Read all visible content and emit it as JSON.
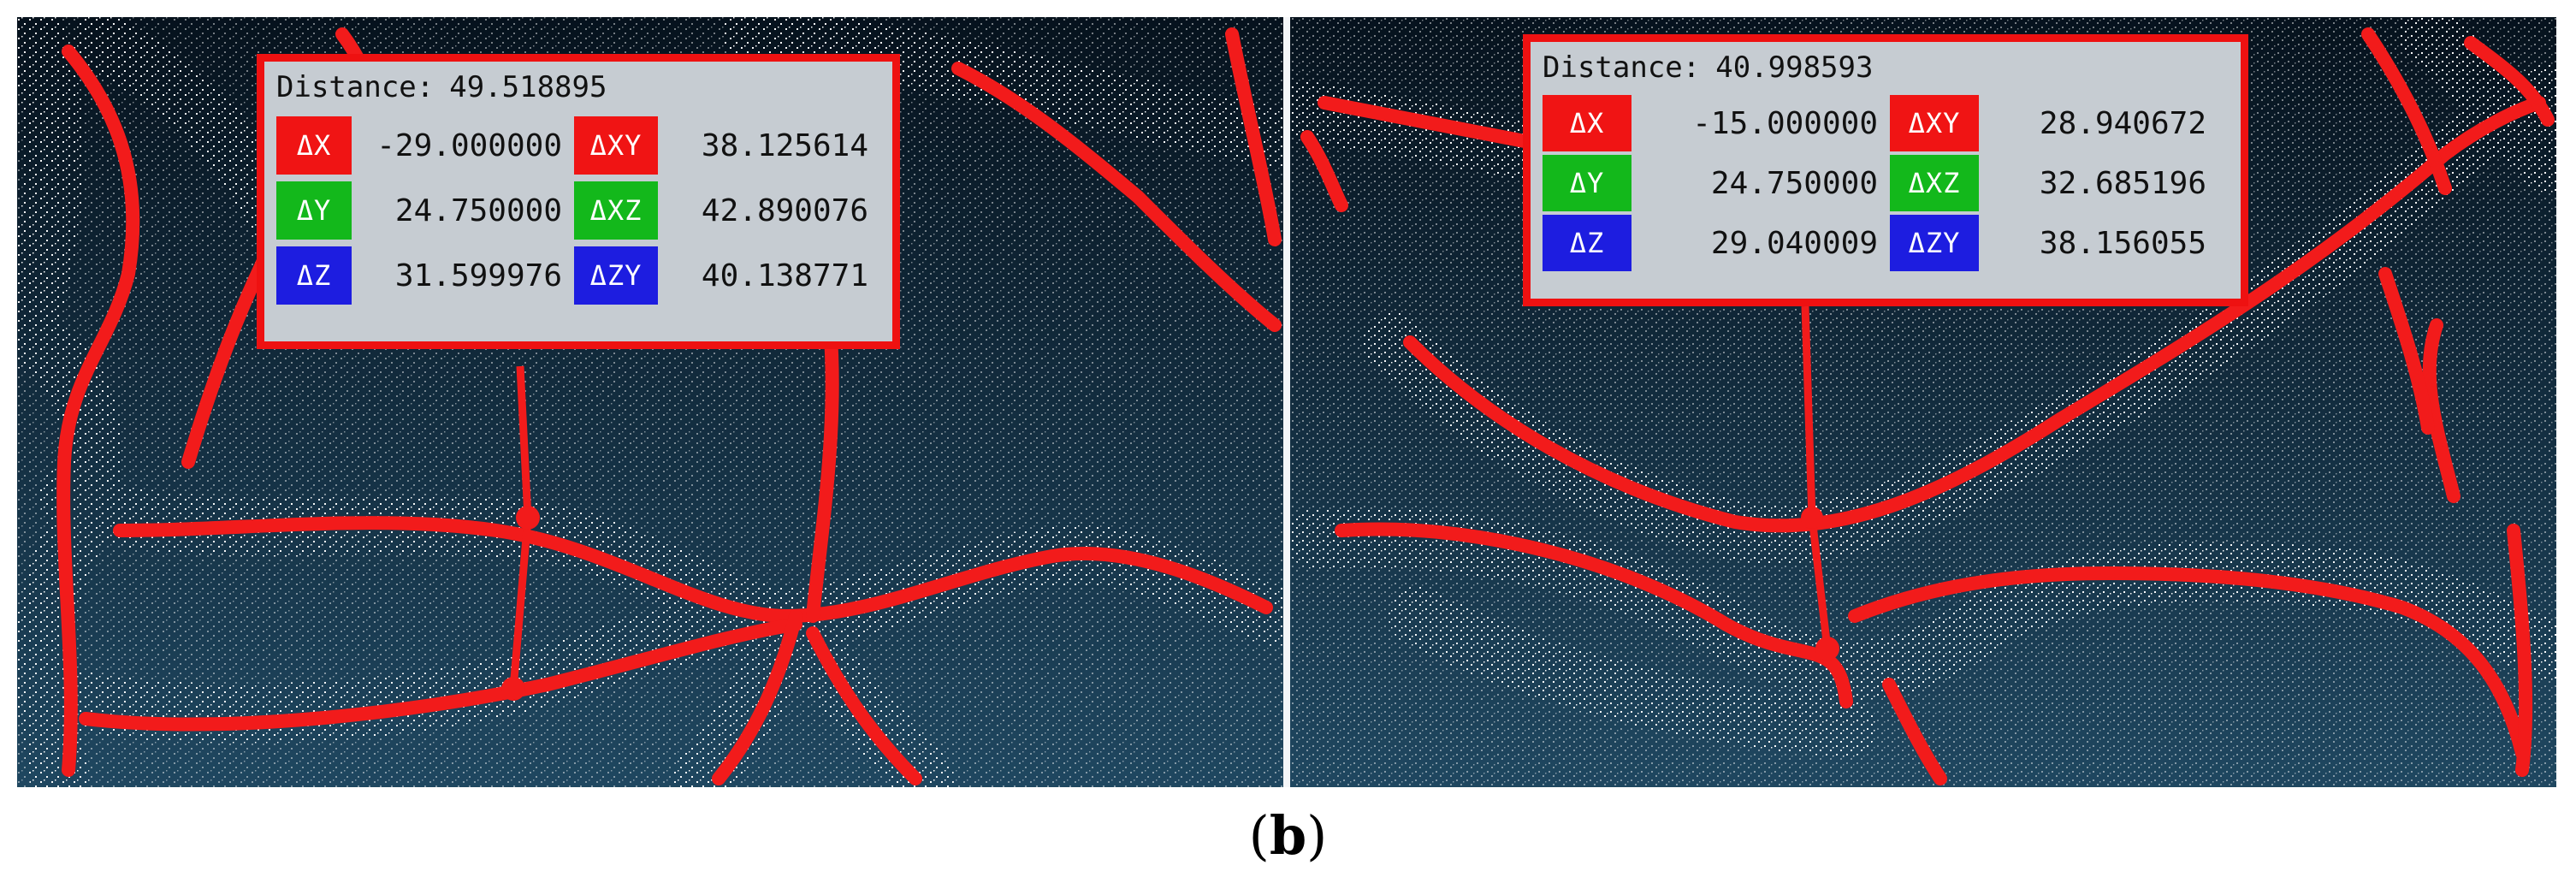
{
  "colors": {
    "x_swatch": "#f01414",
    "y_swatch": "#13b81b",
    "z_swatch": "#1d1de0",
    "frame": "#ee1111",
    "info_background": "#c6ccd2",
    "scene_top": "#06121d",
    "scene_bottom": "#1f4760",
    "track_red": "#f21b1b",
    "points_white": "#ffffff"
  },
  "left_panel": {
    "distance_label": "Distance:",
    "distance_value": "49.518895",
    "rows": [
      {
        "label_a": "ΔX",
        "value_a": "-29.000000",
        "label_b": "ΔXY",
        "value_b": "38.125614"
      },
      {
        "label_a": "ΔY",
        "value_a": "24.750000",
        "label_b": "ΔXZ",
        "value_b": "42.890076"
      },
      {
        "label_a": "ΔZ",
        "value_a": "31.599976",
        "label_b": "ΔZY",
        "value_b": "40.138771"
      }
    ]
  },
  "right_panel": {
    "distance_label": "Distance:",
    "distance_value": "40.998593",
    "rows": [
      {
        "label_a": "ΔX",
        "value_a": "-15.000000",
        "label_b": "ΔXY",
        "value_b": "28.940672"
      },
      {
        "label_a": "ΔY",
        "value_a": "24.750000",
        "label_b": "ΔXZ",
        "value_b": "32.685196"
      },
      {
        "label_a": "ΔZ",
        "value_a": "29.040009",
        "label_b": "ΔZY",
        "value_b": "38.156055"
      }
    ]
  },
  "caption": {
    "open": "(",
    "letter": "b",
    "close": ")"
  }
}
